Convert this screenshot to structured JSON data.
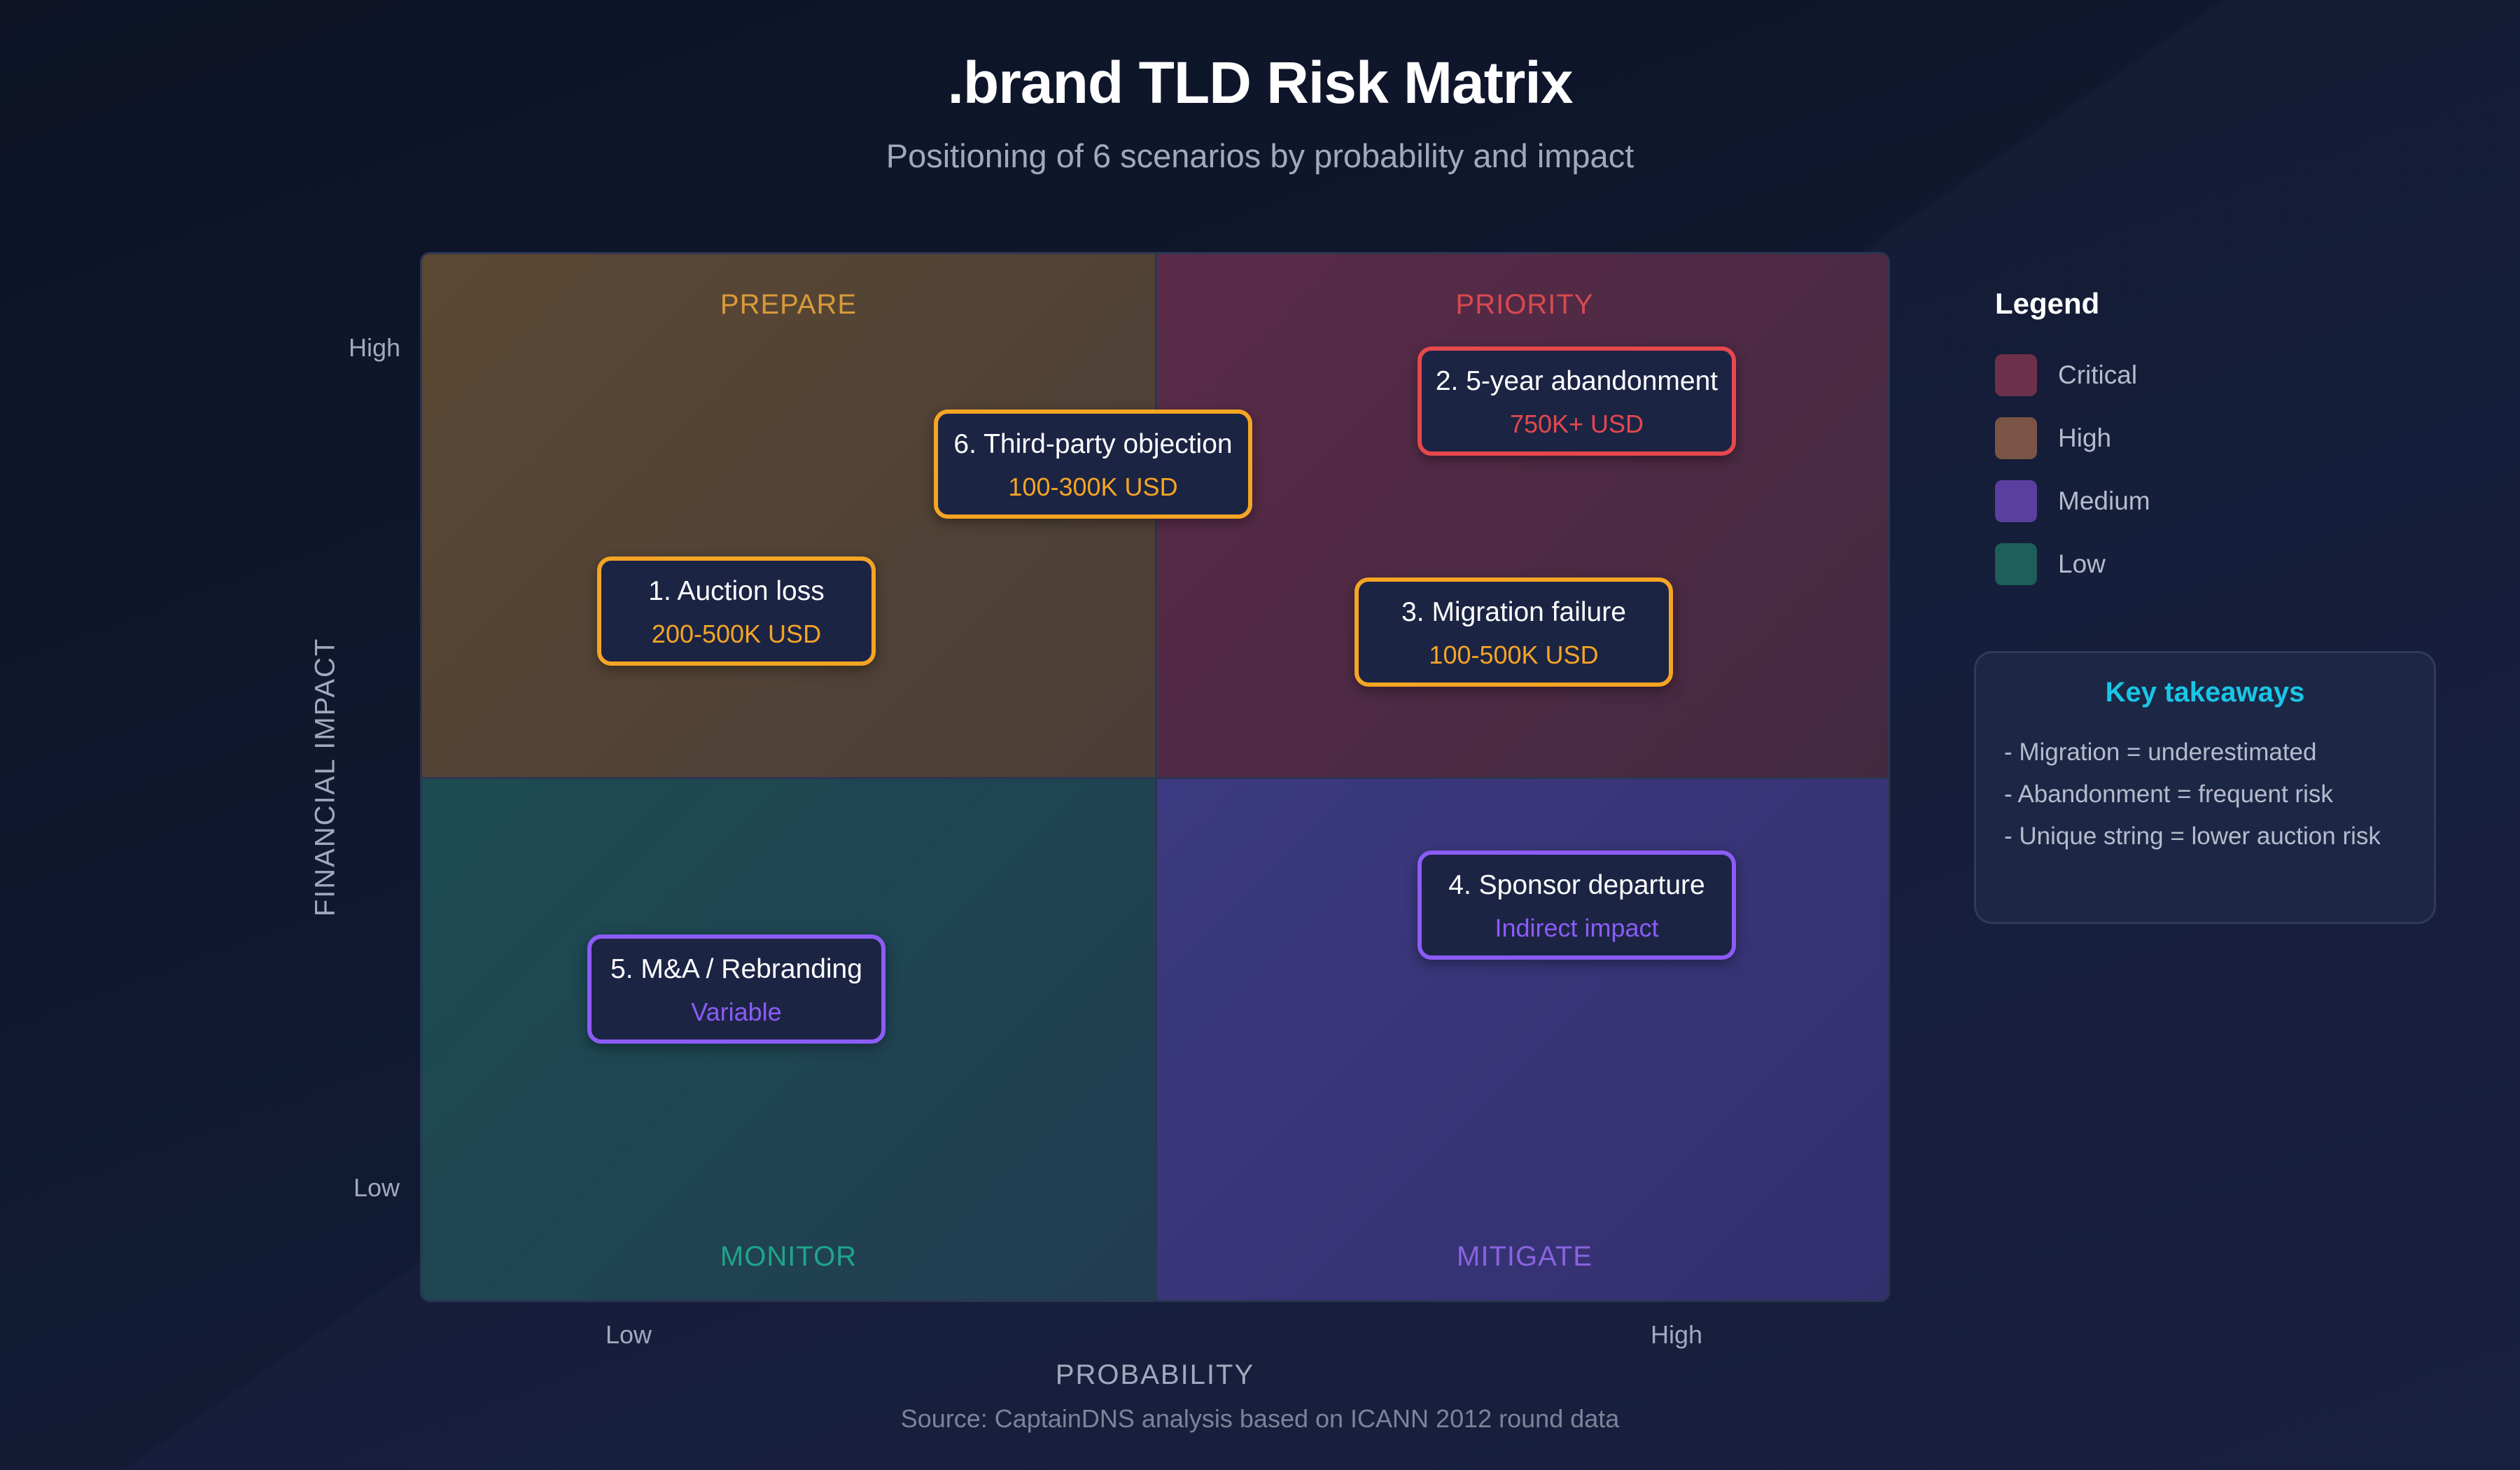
{
  "title": ".brand TLD Risk Matrix",
  "subtitle": "Positioning of 6 scenarios by probability and impact",
  "quadrants": {
    "prepare": "PREPARE",
    "priority": "PRIORITY",
    "monitor": "MONITOR",
    "mitigate": "MITIGATE"
  },
  "scenarios": [
    {
      "name": "1. Auction loss",
      "cost": "200-500K USD",
      "quadrant": "PREPARE",
      "color": "#f5a524"
    },
    {
      "name": "2. 5-year abandonment",
      "cost": "750K+ USD",
      "quadrant": "PRIORITY",
      "color": "#e5484d"
    },
    {
      "name": "3. Migration failure",
      "cost": "100-500K USD",
      "quadrant": "PRIORITY",
      "color": "#f5a524"
    },
    {
      "name": "4. Sponsor departure",
      "cost": "Indirect impact",
      "quadrant": "MITIGATE",
      "color": "#8b5cf6"
    },
    {
      "name": "5. M&A / Rebranding",
      "cost": "Variable",
      "quadrant": "MONITOR",
      "color": "#8b5cf6"
    },
    {
      "name": "6. Third-party objection",
      "cost": "100-300K USD",
      "quadrant": "PREPARE",
      "color": "#f5a524"
    }
  ],
  "axes": {
    "y_title": "FINANCIAL IMPACT",
    "y_high": "High",
    "y_low": "Low",
    "x_title": "PROBABILITY",
    "x_low": "Low",
    "x_high": "High"
  },
  "legend": {
    "title": "Legend",
    "items": [
      {
        "label": "Critical",
        "color": "#6e2f4a"
      },
      {
        "label": "High",
        "color": "#7a5545"
      },
      {
        "label": "Medium",
        "color": "#5a3fa0"
      },
      {
        "label": "Low",
        "color": "#1f5e5a"
      }
    ]
  },
  "takeaways": {
    "title": "Key takeaways",
    "items": [
      "- Migration = underestimated",
      "- Abandonment = frequent risk",
      "- Unique string = lower auction risk"
    ]
  },
  "source": "Source: CaptainDNS analysis based on ICANN 2012 round data"
}
